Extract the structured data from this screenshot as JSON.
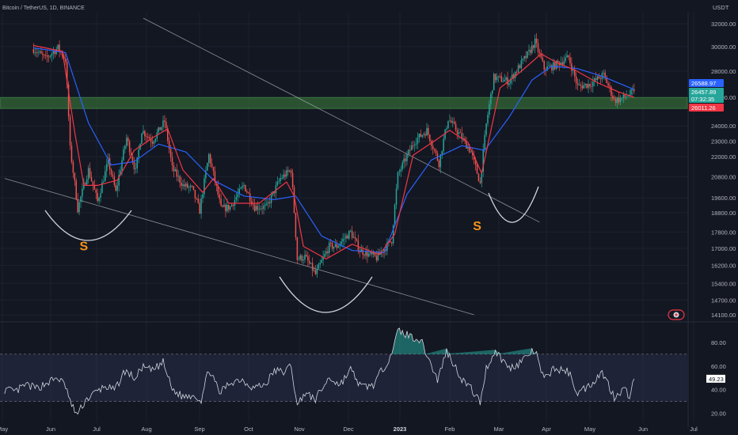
{
  "header": {
    "title": "Bitcoin / TetherUS, 1D, BINANCE",
    "currency": "USDT"
  },
  "colors": {
    "background": "#131722",
    "up": "#26a69a",
    "down": "#ef5350",
    "ema_fast": "#f23645",
    "ema_slow": "#2962ff",
    "zone": "#2f5d34",
    "annotation": "#f7931a",
    "rsi": "#d1d4dc",
    "rsi_band": "#2a2e4a"
  },
  "chart_data": [
    {
      "type": "candlestick",
      "title": "Bitcoin / TetherUS, 1D, BINANCE",
      "y_unit": "USDT",
      "y_scale": "log",
      "y_ticks": [
        32000,
        30000,
        28000,
        26000,
        24000,
        23000,
        22000,
        20800,
        19600,
        18800,
        17800,
        17000,
        16200,
        15400,
        14700,
        14100
      ],
      "x_ticks": [
        "May",
        "Jun",
        "Jul",
        "Aug",
        "Sep",
        "Oct",
        "Nov",
        "Dec",
        "2023",
        "Feb",
        "Mar",
        "Apr",
        "May",
        "Jun",
        "Jul"
      ],
      "price_tags": [
        {
          "label": "26588.97",
          "value": 26588.97,
          "color": "#2962ff"
        },
        {
          "label": "26457.89",
          "value": 26457.89,
          "color": "#26a69a"
        },
        {
          "label": "07:32:35",
          "value": null,
          "color": "#26a69a"
        },
        {
          "label": "26011.26",
          "value": 26011.26,
          "color": "#f23645"
        }
      ],
      "close_path": [
        [
          "2022-05-20",
          29800
        ],
        [
          "2022-05-28",
          29000
        ],
        [
          "2022-06-05",
          29900
        ],
        [
          "2022-06-10",
          28900
        ],
        [
          "2022-06-13",
          22500
        ],
        [
          "2022-06-18",
          19000
        ],
        [
          "2022-06-25",
          21200
        ],
        [
          "2022-07-01",
          19400
        ],
        [
          "2022-07-08",
          21700
        ],
        [
          "2022-07-13",
          19900
        ],
        [
          "2022-07-20",
          23200
        ],
        [
          "2022-07-26",
          21100
        ],
        [
          "2022-07-30",
          23700
        ],
        [
          "2022-08-06",
          23000
        ],
        [
          "2022-08-14",
          24300
        ],
        [
          "2022-08-19",
          21300
        ],
        [
          "2022-08-26",
          20300
        ],
        [
          "2022-09-01",
          20100
        ],
        [
          "2022-09-06",
          18900
        ],
        [
          "2022-09-12",
          22100
        ],
        [
          "2022-09-20",
          19000
        ],
        [
          "2022-09-26",
          19100
        ],
        [
          "2022-10-05",
          20300
        ],
        [
          "2022-10-12",
          19100
        ],
        [
          "2022-10-20",
          19100
        ],
        [
          "2022-10-29",
          20700
        ],
        [
          "2022-11-05",
          21200
        ],
        [
          "2022-11-09",
          16500
        ],
        [
          "2022-11-14",
          16600
        ],
        [
          "2022-11-21",
          15800
        ],
        [
          "2022-11-30",
          17100
        ],
        [
          "2022-12-05",
          17100
        ],
        [
          "2022-12-14",
          17800
        ],
        [
          "2022-12-20",
          16900
        ],
        [
          "2022-12-31",
          16550
        ],
        [
          "2023-01-10",
          17400
        ],
        [
          "2023-01-14",
          20900
        ],
        [
          "2023-01-25",
          23000
        ],
        [
          "2023-02-02",
          23700
        ],
        [
          "2023-02-10",
          21600
        ],
        [
          "2023-02-16",
          24500
        ],
        [
          "2023-02-25",
          23200
        ],
        [
          "2023-03-03",
          22300
        ],
        [
          "2023-03-09",
          20400
        ],
        [
          "2023-03-13",
          24100
        ],
        [
          "2023-03-18",
          27500
        ],
        [
          "2023-03-28",
          27200
        ],
        [
          "2023-04-10",
          29500
        ],
        [
          "2023-04-14",
          30400
        ],
        [
          "2023-04-20",
          28200
        ],
        [
          "2023-04-26",
          28400
        ],
        [
          "2023-05-06",
          29100
        ],
        [
          "2023-05-12",
          26800
        ],
        [
          "2023-05-20",
          27000
        ],
        [
          "2023-05-29",
          27700
        ],
        [
          "2023-06-05",
          25800
        ],
        [
          "2023-06-10",
          25900
        ],
        [
          "2023-06-18",
          26457.89
        ]
      ],
      "ema_fast_series": [
        [
          "2022-05-20",
          30100
        ],
        [
          "2022-06-08",
          29600
        ],
        [
          "2022-06-16",
          23600
        ],
        [
          "2022-06-22",
          20300
        ],
        [
          "2022-07-01",
          20300
        ],
        [
          "2022-07-14",
          20600
        ],
        [
          "2022-07-25",
          22400
        ],
        [
          "2022-08-06",
          23200
        ],
        [
          "2022-08-16",
          23800
        ],
        [
          "2022-08-26",
          21200
        ],
        [
          "2022-09-08",
          19900
        ],
        [
          "2022-09-15",
          20700
        ],
        [
          "2022-09-25",
          19300
        ],
        [
          "2022-10-15",
          19300
        ],
        [
          "2022-11-02",
          20500
        ],
        [
          "2022-11-07",
          19700
        ],
        [
          "2022-11-13",
          17100
        ],
        [
          "2022-11-28",
          16500
        ],
        [
          "2022-12-15",
          17200
        ],
        [
          "2023-01-02",
          16700
        ],
        [
          "2023-01-12",
          17700
        ],
        [
          "2023-01-24",
          22100
        ],
        [
          "2023-02-07",
          23000
        ],
        [
          "2023-02-17",
          23700
        ],
        [
          "2023-03-01",
          22900
        ],
        [
          "2023-03-10",
          21000
        ],
        [
          "2023-03-22",
          26700
        ],
        [
          "2023-04-05",
          28000
        ],
        [
          "2023-04-18",
          29400
        ],
        [
          "2023-04-28",
          28700
        ],
        [
          "2023-05-10",
          28100
        ],
        [
          "2023-05-25",
          27100
        ],
        [
          "2023-06-08",
          26400
        ],
        [
          "2023-06-18",
          26011.26
        ]
      ],
      "ema_slow_series": [
        [
          "2022-05-20",
          29900
        ],
        [
          "2022-06-10",
          29500
        ],
        [
          "2022-06-25",
          24200
        ],
        [
          "2022-07-10",
          21500
        ],
        [
          "2022-07-25",
          21700
        ],
        [
          "2022-08-10",
          22800
        ],
        [
          "2022-08-28",
          22300
        ],
        [
          "2022-09-15",
          20600
        ],
        [
          "2022-10-05",
          19700
        ],
        [
          "2022-10-25",
          19500
        ],
        [
          "2022-11-08",
          19700
        ],
        [
          "2022-11-25",
          17600
        ],
        [
          "2022-12-15",
          16900
        ],
        [
          "2023-01-05",
          16800
        ],
        [
          "2023-01-20",
          19800
        ],
        [
          "2023-02-05",
          21800
        ],
        [
          "2023-02-25",
          22700
        ],
        [
          "2023-03-12",
          22400
        ],
        [
          "2023-03-28",
          24600
        ],
        [
          "2023-04-12",
          27300
        ],
        [
          "2023-04-25",
          28400
        ],
        [
          "2023-05-12",
          28200
        ],
        [
          "2023-05-28",
          27600
        ],
        [
          "2023-06-18",
          26588.97
        ]
      ],
      "zone": {
        "low": 25200,
        "high": 26000
      },
      "trendlines": [
        {
          "from": [
            "2022-07-31",
            32500
          ],
          "to": [
            "2023-04-17",
            18300
          ]
        },
        {
          "from": [
            "2022-05-01",
            20700
          ],
          "to": [
            "2023-03-05",
            14100
          ]
        }
      ],
      "annotations": [
        {
          "text": "S",
          "date": "2022-06-22",
          "price": 16900
        },
        {
          "text": "S",
          "date": "2023-03-07",
          "price": 17900
        }
      ]
    },
    {
      "type": "line",
      "title": "",
      "y_ticks": [
        80,
        60,
        40,
        20
      ],
      "ylim": [
        15,
        92
      ],
      "band": [
        30,
        70
      ],
      "last_label": "49.23",
      "last_value": 49.23,
      "series": [
        {
          "values": [
            [
              "2022-05-01",
              40
            ],
            [
              "2022-05-08",
              38
            ],
            [
              "2022-05-15",
              44
            ],
            [
              "2022-05-22",
              41
            ],
            [
              "2022-05-29",
              46
            ],
            [
              "2022-06-05",
              50
            ],
            [
              "2022-06-10",
              43
            ],
            [
              "2022-06-14",
              26
            ],
            [
              "2022-06-18",
              19
            ],
            [
              "2022-06-23",
              31
            ],
            [
              "2022-06-29",
              37
            ],
            [
              "2022-07-06",
              43
            ],
            [
              "2022-07-12",
              39
            ],
            [
              "2022-07-19",
              56
            ],
            [
              "2022-07-26",
              49
            ],
            [
              "2022-07-30",
              59
            ],
            [
              "2022-08-06",
              56
            ],
            [
              "2022-08-13",
              63
            ],
            [
              "2022-08-19",
              40
            ],
            [
              "2022-08-26",
              34
            ],
            [
              "2022-09-02",
              36
            ],
            [
              "2022-09-07",
              31
            ],
            [
              "2022-09-12",
              58
            ],
            [
              "2022-09-19",
              37
            ],
            [
              "2022-09-26",
              46
            ],
            [
              "2022-10-03",
              49
            ],
            [
              "2022-10-11",
              42
            ],
            [
              "2022-10-19",
              44
            ],
            [
              "2022-10-25",
              56
            ],
            [
              "2022-11-01",
              55
            ],
            [
              "2022-11-05",
              61
            ],
            [
              "2022-11-09",
              25
            ],
            [
              "2022-11-13",
              37
            ],
            [
              "2022-11-21",
              32
            ],
            [
              "2022-11-30",
              50
            ],
            [
              "2022-12-07",
              44
            ],
            [
              "2022-12-14",
              57
            ],
            [
              "2022-12-21",
              42
            ],
            [
              "2022-12-29",
              44
            ],
            [
              "2023-01-08",
              66
            ],
            [
              "2023-01-12",
              79
            ],
            [
              "2023-01-14",
              90
            ],
            [
              "2023-01-21",
              86
            ],
            [
              "2023-01-29",
              82
            ],
            [
              "2023-02-02",
              70
            ],
            [
              "2023-02-09",
              48
            ],
            [
              "2023-02-15",
              73
            ],
            [
              "2023-02-20",
              61
            ],
            [
              "2023-02-25",
              49
            ],
            [
              "2023-03-03",
              41
            ],
            [
              "2023-03-09",
              29
            ],
            [
              "2023-03-13",
              58
            ],
            [
              "2023-03-19",
              73
            ],
            [
              "2023-03-28",
              58
            ],
            [
              "2023-04-03",
              62
            ],
            [
              "2023-04-11",
              71
            ],
            [
              "2023-04-14",
              73
            ],
            [
              "2023-04-20",
              48
            ],
            [
              "2023-04-26",
              58
            ],
            [
              "2023-05-06",
              55
            ],
            [
              "2023-05-12",
              37
            ],
            [
              "2023-05-20",
              44
            ],
            [
              "2023-05-28",
              55
            ],
            [
              "2023-06-05",
              34
            ],
            [
              "2023-06-11",
              41
            ],
            [
              "2023-06-15",
              35
            ],
            [
              "2023-06-18",
              49.23
            ]
          ]
        }
      ]
    }
  ]
}
